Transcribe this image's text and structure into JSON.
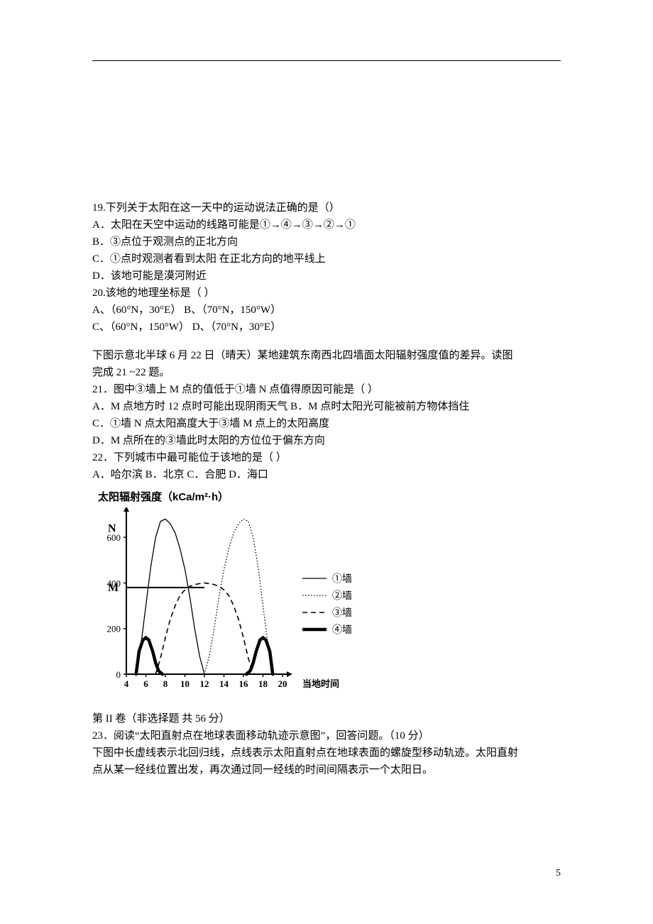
{
  "q19": {
    "stem": "19.下列关于太阳在这一天中的运动说法正确的是（）",
    "A": "A．太阳在天空中运动的线路可能是①→④→③→②→①",
    "B": "B．③点位于观测点的正北方向",
    "C": "C．①点时观测者看到太阳  在正北方向的地平线上",
    "D": "D．该地可能是漠河附近"
  },
  "q20": {
    "stem": "20.该地的地理坐标是（ ）",
    "line1": "A、（60°N，30°E）  B、（70°N，150°W）",
    "line2": "C、（60°N，150°W）  D、（70°N，30°E）"
  },
  "intro2122": {
    "line1": "下图示意北半球 6 月 22 日（晴天）某地建筑东南西北四墙面太阳辐射强度值的差异。读图",
    "line2": "完成 21 ~22 题。"
  },
  "q21": {
    "stem": "21．图中③墙上 M 点的值低于①墙 N 点值得原因可能是（  ）",
    "lineAB": "A．M 点地方时 12 点时可能出现阴雨天气 B．M 点时太阳光可能被前方物体挡住",
    "C": "C．①墙 N 点太阳高度大于③墙 M 点上的太阳高度",
    "D": "D．M 点所在的③墙此时太阳的方位位于偏东方向"
  },
  "q22": {
    "stem": "22．下列城市中最可能位于该地的是（    ）",
    "options": "A．哈尔滨    B．北京   C．合肥     D．海口"
  },
  "chart": {
    "title": "太阳辐射强度（kCa/m²·h）",
    "y_label_N": "N",
    "y_labels": [
      "0",
      "200",
      "400",
      "600"
    ],
    "y_label_M": "M",
    "yM_value": 380,
    "x_labels": [
      "4",
      "6",
      "8",
      "10",
      "12",
      "14",
      "16",
      "18",
      "20"
    ],
    "x_axis_label": "当地时间",
    "legend": [
      "①墙",
      "②墙",
      "③墙",
      "④墙"
    ],
    "colors": {
      "axis": "#000000",
      "bg": "#ffffff"
    },
    "series1": [
      [
        5,
        0
      ],
      [
        5.5,
        130
      ],
      [
        6,
        300
      ],
      [
        6.5,
        470
      ],
      [
        7,
        600
      ],
      [
        7.5,
        670
      ],
      [
        8,
        680
      ],
      [
        8.5,
        660
      ],
      [
        9,
        620
      ],
      [
        9.5,
        550
      ],
      [
        10,
        460
      ],
      [
        10.5,
        340
      ],
      [
        11,
        200
      ],
      [
        11.5,
        80
      ],
      [
        12,
        0
      ]
    ],
    "series2": [
      [
        12,
        0
      ],
      [
        12.5,
        80
      ],
      [
        13,
        200
      ],
      [
        13.5,
        340
      ],
      [
        14,
        460
      ],
      [
        14.5,
        550
      ],
      [
        15,
        620
      ],
      [
        15.5,
        660
      ],
      [
        16,
        680
      ],
      [
        16.5,
        670
      ],
      [
        17,
        600
      ],
      [
        17.5,
        470
      ],
      [
        18,
        300
      ],
      [
        18.5,
        130
      ],
      [
        19,
        0
      ]
    ],
    "series3": [
      [
        7,
        0
      ],
      [
        7.5,
        70
      ],
      [
        8,
        160
      ],
      [
        8.5,
        240
      ],
      [
        9,
        300
      ],
      [
        9.5,
        345
      ],
      [
        10,
        370
      ],
      [
        10.5,
        385
      ],
      [
        11,
        393
      ],
      [
        11.5,
        397
      ],
      [
        12,
        400
      ],
      [
        12.5,
        397
      ],
      [
        13,
        393
      ],
      [
        13.5,
        385
      ],
      [
        14,
        370
      ],
      [
        14.5,
        345
      ],
      [
        15,
        300
      ],
      [
        15.5,
        240
      ],
      [
        16,
        160
      ],
      [
        16.5,
        70
      ],
      [
        17,
        0
      ]
    ],
    "series4a": [
      [
        5,
        0
      ],
      [
        5.3,
        100
      ],
      [
        5.7,
        150
      ],
      [
        6,
        160
      ],
      [
        6.3,
        150
      ],
      [
        6.7,
        100
      ],
      [
        7,
        50
      ],
      [
        7.3,
        15
      ],
      [
        7.7,
        0
      ]
    ],
    "series4b": [
      [
        16.3,
        0
      ],
      [
        16.7,
        15
      ],
      [
        17,
        50
      ],
      [
        17.3,
        100
      ],
      [
        17.7,
        150
      ],
      [
        18,
        160
      ],
      [
        18.3,
        150
      ],
      [
        18.7,
        100
      ],
      [
        19,
        0
      ]
    ]
  },
  "partII": {
    "header": "第 II 卷（非选择题  共 56 分）",
    "q23_stem": "23．阅读“太阳直射点在地球表面移动轨迹示意图”，回答问题。（10 分）",
    "q23_line1": "下图中长虚线表示北回归线，点线表示太阳直射点在地球表面的螺旋型移动轨迹。太阳直射",
    "q23_line2": "点从某一经线位置出发，再次通过同一经线的时间间隔表示一个太阳日。"
  },
  "page_number": "5"
}
